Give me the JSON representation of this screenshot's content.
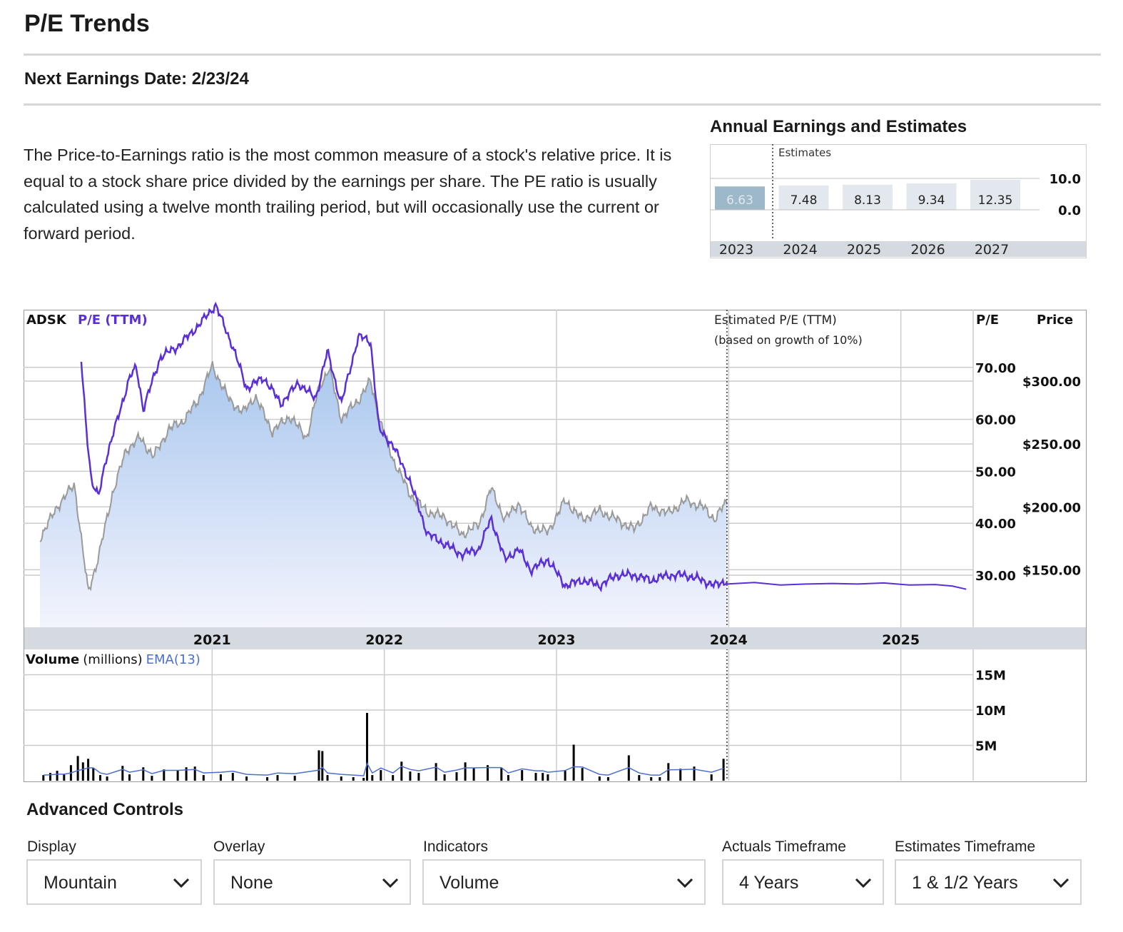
{
  "page": {
    "title": "P/E Trends",
    "next_earnings": "Next Earnings Date: 2/23/24",
    "description": "The Price-to-Earnings ratio is the most common measure of a stock's relative price. It is equal to a stock share price divided by the earnings per share. The PE ratio is usually calculated using a twelve month trailing period, but will occasionally use the current or forward period."
  },
  "annual": {
    "title": "Annual Earnings and Estimates",
    "estimates_label": "Estimates",
    "years": [
      "2023",
      "2024",
      "2025",
      "2026",
      "2027"
    ],
    "values": [
      "6.63",
      "7.48",
      "8.13",
      "9.34",
      "12.35"
    ],
    "actual_count": 1,
    "axis_labels": [
      "10.0",
      "0.0"
    ]
  },
  "main": {
    "ticker": "ADSK",
    "pe_label": "P/E (TTM)",
    "estimated_label_1": "Estimated P/E (TTM)",
    "estimated_label_2": "(based on growth of 10%)",
    "pe_axis_title": "P/E",
    "price_axis_title": "Price",
    "volume_label": "Volume",
    "volume_unit": "(millions)",
    "ema_label": "EMA(13)"
  },
  "chart_data": {
    "type": "area",
    "x_labels": [
      "2021",
      "2022",
      "2023",
      "2024",
      "2025"
    ],
    "pe_axis": {
      "ticks": [
        "70.00",
        "60.00",
        "50.00",
        "40.00",
        "30.00"
      ],
      "ylim": [
        20,
        80
      ]
    },
    "price_axis": {
      "ticks": [
        "$300.00",
        "$250.00",
        "$200.00",
        "$150.00"
      ],
      "ylim": [
        100,
        325
      ]
    },
    "volume_axis": {
      "ticks": [
        "15M",
        "10M",
        "5M"
      ],
      "ylim": [
        0,
        17
      ]
    },
    "price_series": {
      "x": [
        2020.0,
        2020.1,
        2020.2,
        2020.28,
        2020.34,
        2020.42,
        2020.5,
        2020.58,
        2020.66,
        2020.75,
        2020.83,
        2020.92,
        2021.0,
        2021.1,
        2021.18,
        2021.25,
        2021.35,
        2021.45,
        2021.55,
        2021.62,
        2021.68,
        2021.75,
        2021.85,
        2021.92,
        2021.97,
        2022.05,
        2022.15,
        2022.25,
        2022.35,
        2022.45,
        2022.55,
        2022.62,
        2022.7,
        2022.78,
        2022.85,
        2022.95,
        2023.05,
        2023.15,
        2023.25,
        2023.35,
        2023.45,
        2023.55,
        2023.65,
        2023.75,
        2023.85,
        2023.92,
        2023.99
      ],
      "values": [
        175,
        200,
        218,
        132,
        160,
        210,
        245,
        255,
        240,
        262,
        268,
        285,
        312,
        285,
        275,
        288,
        260,
        272,
        255,
        295,
        310,
        270,
        285,
        300,
        270,
        238,
        210,
        196,
        192,
        178,
        186,
        215,
        190,
        203,
        184,
        180,
        205,
        190,
        197,
        190,
        182,
        200,
        195,
        205,
        200,
        190,
        205
      ]
    },
    "pe_series": {
      "x": [
        2020.24,
        2020.27,
        2020.3,
        2020.34,
        2020.38,
        2020.45,
        2020.52,
        2020.56,
        2020.6,
        2020.7,
        2020.8,
        2020.92,
        2021.02,
        2021.12,
        2021.2,
        2021.3,
        2021.4,
        2021.5,
        2021.6,
        2021.67,
        2021.75,
        2021.85,
        2021.92,
        2021.97,
        2022.05,
        2022.15,
        2022.25,
        2022.35,
        2022.45,
        2022.55,
        2022.62,
        2022.7,
        2022.78,
        2022.85,
        2022.95,
        2023.05,
        2023.15,
        2023.25,
        2023.35,
        2023.45,
        2023.55,
        2023.65,
        2023.75,
        2023.85,
        2023.92,
        2023.99
      ],
      "values": [
        71,
        58,
        48,
        45,
        52,
        60,
        68,
        70,
        62,
        72,
        74,
        78,
        82,
        74,
        66,
        68,
        63,
        67,
        64,
        73,
        63,
        76,
        75,
        58,
        55,
        48,
        38,
        36,
        34,
        35,
        41,
        33,
        35,
        31,
        33,
        28,
        29,
        28,
        30,
        30,
        29,
        30,
        30,
        29,
        28,
        29
      ]
    },
    "estimated_pe_series": {
      "x": [
        2023.99,
        2024.15,
        2024.3,
        2024.45,
        2024.6,
        2024.75,
        2024.9,
        2025.05,
        2025.2,
        2025.3,
        2025.38
      ],
      "values": [
        28.3,
        28.6,
        28.1,
        28.3,
        28.4,
        28.3,
        28.5,
        28.1,
        28.2,
        27.9,
        27.3
      ]
    },
    "volume_series": {
      "x": [
        2020.02,
        2020.06,
        2020.1,
        2020.14,
        2020.18,
        2020.22,
        2020.25,
        2020.28,
        2020.31,
        2020.35,
        2020.39,
        2020.48,
        2020.52,
        2020.6,
        2020.65,
        2020.72,
        2020.8,
        2020.85,
        2020.9,
        2020.95,
        2021.05,
        2021.12,
        2021.2,
        2021.32,
        2021.38,
        2021.48,
        2021.62,
        2021.64,
        2021.67,
        2021.75,
        2021.82,
        2021.88,
        2021.9,
        2021.93,
        2021.98,
        2022.05,
        2022.1,
        2022.15,
        2022.2,
        2022.3,
        2022.35,
        2022.42,
        2022.47,
        2022.52,
        2022.6,
        2022.68,
        2022.72,
        2022.8,
        2022.88,
        2022.92,
        2022.95,
        2023.05,
        2023.1,
        2023.15,
        2023.25,
        2023.3,
        2023.42,
        2023.48,
        2023.55,
        2023.6,
        2023.65,
        2023.72,
        2023.8,
        2023.9,
        2023.97
      ],
      "values": [
        0.8,
        1.1,
        1.4,
        0.9,
        2.2,
        3.5,
        2.6,
        3.1,
        1.8,
        0.8,
        0.6,
        2.1,
        0.9,
        1.9,
        0.7,
        1.6,
        1.5,
        1.9,
        2.0,
        0.8,
        0.9,
        1.1,
        0.6,
        0.5,
        0.8,
        0.7,
        4.3,
        4.2,
        0.8,
        0.6,
        0.5,
        0.4,
        9.6,
        0.8,
        1.5,
        0.8,
        2.7,
        1.3,
        1.1,
        2.5,
        0.9,
        1.2,
        2.6,
        1.8,
        2.2,
        1.8,
        0.8,
        1.5,
        1.1,
        1.1,
        0.9,
        1.5,
        5.1,
        1.8,
        0.6,
        0.5,
        3.6,
        0.8,
        0.5,
        0.5,
        2.5,
        1.7,
        2.0,
        0.9,
        3.1
      ]
    }
  },
  "controls": {
    "title": "Advanced Controls",
    "items": [
      {
        "label": "Display",
        "value": "Mountain"
      },
      {
        "label": "Overlay",
        "value": "None"
      },
      {
        "label": "Indicators",
        "value": "Volume"
      },
      {
        "label": "Actuals Timeframe",
        "value": "4 Years"
      },
      {
        "label": "Estimates Timeframe",
        "value": "1 & 1/2 Years"
      }
    ]
  },
  "colors": {
    "pe_line": "#5b2fd6",
    "price_line": "#9a9a9a",
    "area_top": "#a9c7ee",
    "area_bottom": "#f3f4fd",
    "grid": "#cccccc",
    "axis_band": "#d5d9e0",
    "volume_bar": "#000000",
    "ema": "#4d6fd0",
    "actual_bar": "#9db8c8",
    "estimate_bar": "#e3e8ee"
  }
}
